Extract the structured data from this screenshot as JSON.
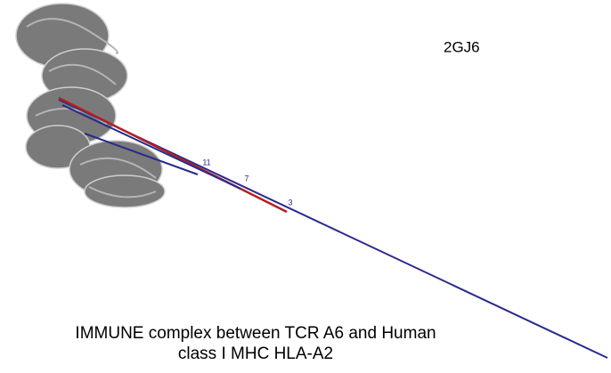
{
  "pdb_id": "2GJ6",
  "markers": [
    "11",
    "7",
    "3"
  ],
  "caption": [
    "IMMUNE complex between TCR A6 and Human",
    "class I MHC HLA-A2"
  ]
}
